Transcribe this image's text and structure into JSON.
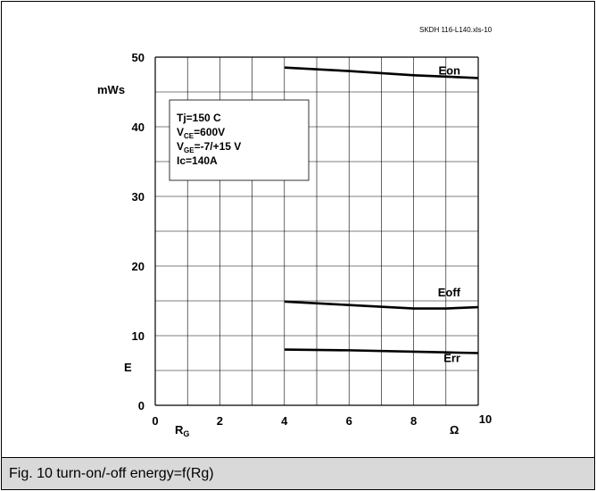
{
  "file_id": "SKDH 116-L140.xls-10",
  "caption": "Fig. 10 turn-on/-off energy=f(Rg)",
  "conditions": {
    "tj": "Tj=150 C",
    "vce_main": "V",
    "vce_sub": "CE",
    "vce_rest": "=600V",
    "vge_main": "V",
    "vge_sub": "GE",
    "vge_rest": "=-7/+15 V",
    "ic": "Ic=140A"
  },
  "colors": {
    "line": "#000000",
    "grid": "#000000",
    "caption_bg": "#d9d9d9"
  },
  "chart_data": {
    "type": "line",
    "title": "",
    "ylabel_unit": "mWs",
    "ylabel": "E",
    "xlabel_main": "R",
    "xlabel_sub": "G",
    "xunit": "Ω",
    "xlim": [
      0,
      10
    ],
    "ylim": [
      0,
      50
    ],
    "x_ticks": [
      0,
      2,
      4,
      6,
      8,
      10
    ],
    "y_ticks": [
      0,
      10,
      20,
      30,
      40,
      50
    ],
    "grid": true,
    "series": [
      {
        "name": "Eon",
        "x": [
          4,
          6,
          8,
          9,
          10
        ],
        "y": [
          48.5,
          48.0,
          47.4,
          47.2,
          47.0
        ]
      },
      {
        "name": "Eoff",
        "x": [
          4,
          6,
          8,
          9,
          10
        ],
        "y": [
          14.9,
          14.4,
          13.9,
          13.9,
          14.1
        ]
      },
      {
        "name": "Err",
        "x": [
          4,
          6,
          8,
          9,
          10
        ],
        "y": [
          8.0,
          7.9,
          7.7,
          7.6,
          7.5
        ]
      }
    ]
  }
}
